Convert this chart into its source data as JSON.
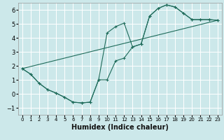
{
  "xlabel": "Humidex (Indice chaleur)",
  "bg_color": "#cce8ea",
  "grid_color": "#b0d8da",
  "line_color": "#1e6b5a",
  "xlim": [
    -0.5,
    23.5
  ],
  "ylim": [
    -1.5,
    6.5
  ],
  "xticks": [
    0,
    1,
    2,
    3,
    4,
    5,
    6,
    7,
    8,
    9,
    10,
    11,
    12,
    13,
    14,
    15,
    16,
    17,
    18,
    19,
    20,
    21,
    22,
    23
  ],
  "yticks": [
    -1,
    0,
    1,
    2,
    3,
    4,
    5,
    6
  ],
  "line1_x": [
    0,
    1,
    2,
    3,
    4,
    5,
    6,
    7,
    8,
    9,
    10,
    11,
    12,
    13,
    14,
    15,
    16,
    17,
    18,
    19,
    20,
    21,
    22,
    23
  ],
  "line1_y": [
    1.8,
    1.4,
    0.75,
    0.3,
    0.05,
    -0.25,
    -0.6,
    -0.65,
    -0.6,
    1.0,
    1.0,
    2.35,
    2.55,
    3.35,
    3.55,
    5.55,
    6.1,
    6.35,
    6.2,
    5.75,
    5.3,
    5.3,
    5.3,
    5.25
  ],
  "line2_x": [
    0,
    1,
    2,
    3,
    4,
    5,
    6,
    7,
    8,
    9,
    10,
    11,
    12,
    13,
    14,
    15,
    16,
    17,
    18,
    19,
    20,
    21,
    22,
    23
  ],
  "line2_y": [
    1.8,
    1.4,
    0.75,
    0.3,
    0.05,
    -0.25,
    -0.6,
    -0.65,
    -0.6,
    1.0,
    4.35,
    4.8,
    5.05,
    3.35,
    3.55,
    5.55,
    6.1,
    6.35,
    6.2,
    5.75,
    5.3,
    5.3,
    5.3,
    5.25
  ],
  "line3_x": [
    0,
    23
  ],
  "line3_y": [
    1.8,
    5.25
  ]
}
